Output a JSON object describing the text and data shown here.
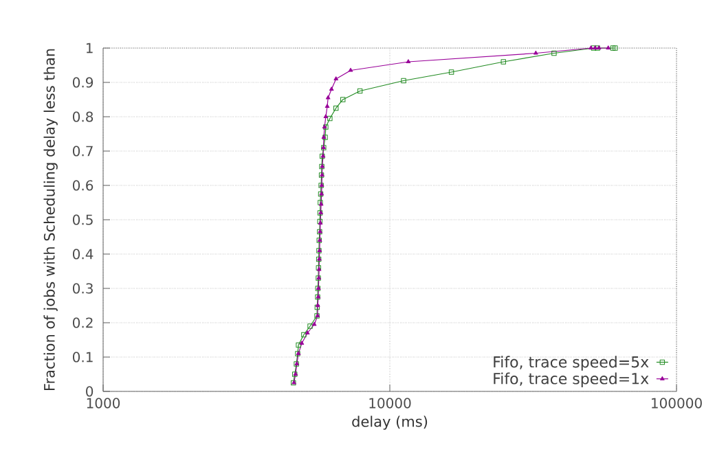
{
  "chart_data": {
    "type": "line",
    "xlabel": "delay (ms)",
    "ylabel": "Fraction of jobs with Scheduling delay less than",
    "log": "x",
    "grid": true,
    "legend": "bottom right",
    "line_style": "solid",
    "xlim": [
      1000,
      100000
    ],
    "xticks": [
      1000,
      10000,
      100000
    ],
    "ylim": [
      0,
      1
    ],
    "yticks": [
      0,
      0.1,
      0.2,
      0.3,
      0.4,
      0.5,
      0.6,
      0.7,
      0.8,
      0.9,
      1
    ],
    "series": [
      {
        "name": "Fifo, trace speed=5x",
        "color": "#228b22",
        "marker": "square",
        "x": [
          4610,
          4660,
          4720,
          4770,
          4800,
          5010,
          5270,
          5570,
          5580,
          5600,
          5610,
          5630,
          5640,
          5650,
          5660,
          5670,
          5690,
          5700,
          5710,
          5720,
          5740,
          5760,
          5775,
          5790,
          5810,
          5880,
          5950,
          5980,
          6180,
          6490,
          6860,
          7870,
          11170,
          16400,
          24900,
          37400,
          51400,
          53000,
          60000,
          61100
        ],
        "values": [
          0.025,
          0.05,
          0.08,
          0.11,
          0.135,
          0.165,
          0.19,
          0.22,
          0.245,
          0.275,
          0.3,
          0.33,
          0.36,
          0.385,
          0.41,
          0.44,
          0.465,
          0.495,
          0.52,
          0.55,
          0.575,
          0.6,
          0.63,
          0.655,
          0.685,
          0.71,
          0.74,
          0.77,
          0.795,
          0.825,
          0.85,
          0.875,
          0.905,
          0.93,
          0.96,
          0.985,
          1.0,
          1.0,
          1.0,
          1.0
        ]
      },
      {
        "name": "Fifo, trace speed=1x",
        "color": "#990099",
        "marker": "triangle",
        "x": [
          4630,
          4690,
          4740,
          4800,
          4930,
          5160,
          5450,
          5600,
          5605,
          5630,
          5640,
          5655,
          5665,
          5675,
          5690,
          5700,
          5715,
          5725,
          5745,
          5760,
          5780,
          5790,
          5805,
          5815,
          5850,
          5870,
          5885,
          5920,
          5980,
          6050,
          6090,
          6260,
          6490,
          7300,
          11600,
          32300,
          50300,
          52000,
          53600,
          57800
        ],
        "values": [
          0.025,
          0.05,
          0.08,
          0.11,
          0.14,
          0.17,
          0.195,
          0.22,
          0.25,
          0.275,
          0.3,
          0.33,
          0.355,
          0.385,
          0.41,
          0.44,
          0.465,
          0.49,
          0.52,
          0.545,
          0.575,
          0.6,
          0.63,
          0.655,
          0.685,
          0.71,
          0.74,
          0.77,
          0.8,
          0.83,
          0.855,
          0.88,
          0.91,
          0.935,
          0.96,
          0.985,
          1.0,
          1.0,
          1.0,
          1.0
        ]
      }
    ]
  }
}
